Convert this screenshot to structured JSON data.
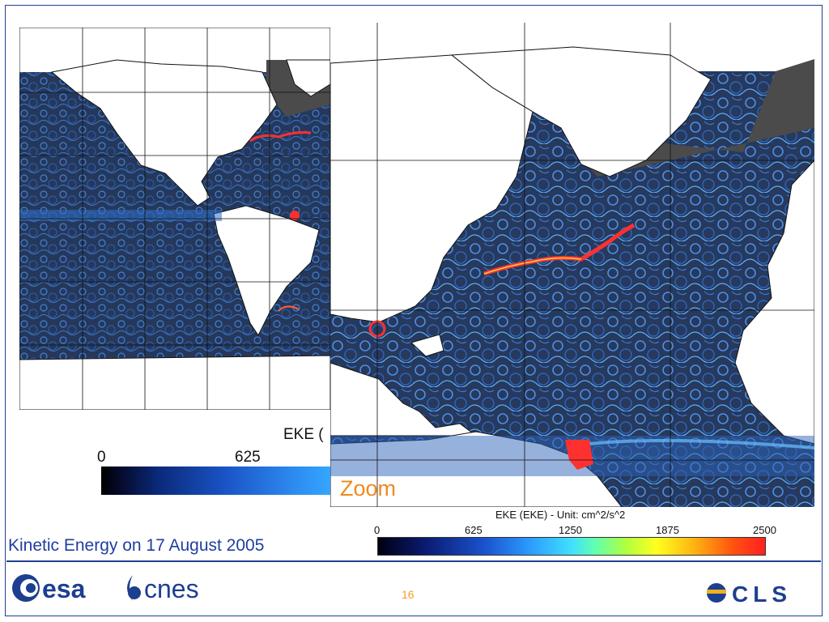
{
  "slide": {
    "caption": "Kinetic Energy on 17 August 2005",
    "page_number": "16",
    "zoom_label": "Zoom"
  },
  "global_map": {
    "eke_label": "EKE (",
    "colorbar_ticks": [
      "0",
      "625"
    ]
  },
  "zoom_map": {
    "eke_label": "EKE (EKE) - Unit: cm^2/s^2",
    "colorbar_ticks": [
      "0",
      "625",
      "1250",
      "1875",
      "2500"
    ]
  },
  "logos": {
    "esa": "esa",
    "cnes": "cnes",
    "cls": "CLS"
  },
  "colors": {
    "ocean": "#2a3a58",
    "land": "#ffffff",
    "masked": "#4b4b4b",
    "eddy_light": "#5ab8ff",
    "eddy_dark": "#1f5fbf",
    "hotspot": "#ff3030",
    "accent_blue": "#1f3f9f",
    "accent_orange": "#f08a20"
  }
}
